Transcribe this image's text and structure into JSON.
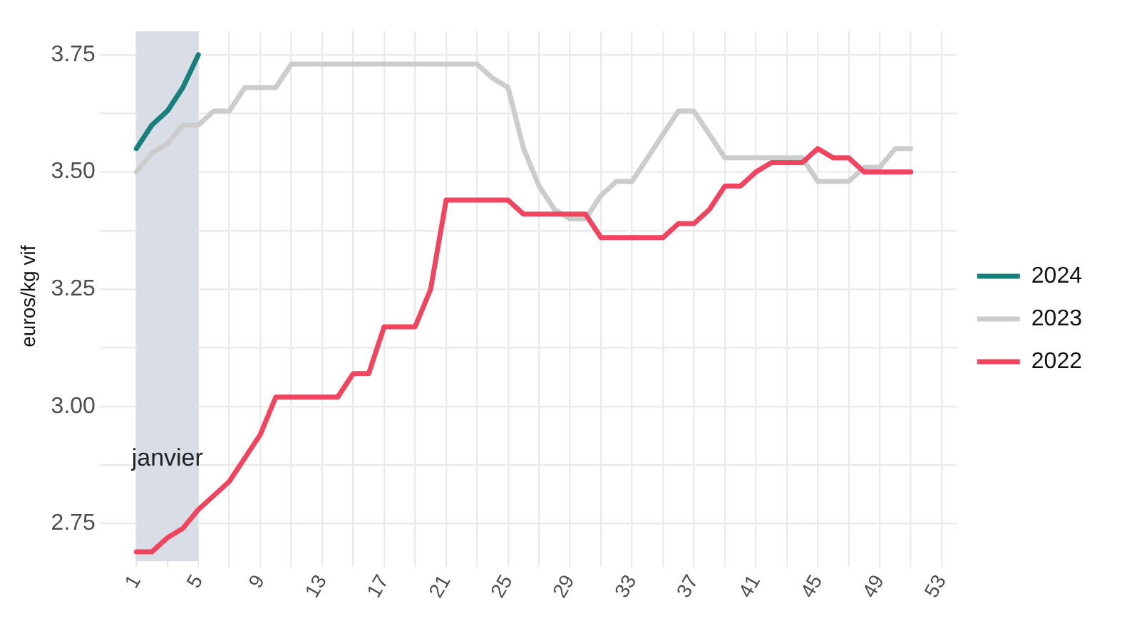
{
  "chart_data": {
    "type": "line",
    "ylabel": "euros/kg vif",
    "xlim": [
      -1,
      54
    ],
    "xticks": [
      1,
      {
        "value": 3,
        "label": null
      },
      5,
      {
        "value": 7,
        "label": null
      },
      9,
      {
        "value": 11,
        "label": null
      },
      13,
      {
        "value": 15,
        "label": null
      },
      17,
      {
        "value": 19,
        "label": null
      },
      21,
      {
        "value": 23,
        "label": null
      },
      25,
      {
        "value": 27,
        "label": null
      },
      29,
      {
        "value": 31,
        "label": null
      },
      33,
      {
        "value": 35,
        "label": null
      },
      37,
      {
        "value": 39,
        "label": null
      },
      41,
      {
        "value": 43,
        "label": null
      },
      45,
      {
        "value": 47,
        "label": null
      },
      49,
      {
        "value": 51,
        "label": null
      },
      53
    ],
    "ylim": [
      2.67,
      3.8
    ],
    "yticks": [
      {
        "value": 2.75,
        "label": "2.75"
      },
      {
        "value": 2.875,
        "label": null
      },
      {
        "value": 3,
        "label": "3.00"
      },
      {
        "value": 3.125,
        "label": null
      },
      {
        "value": 3.25,
        "label": "3.25"
      },
      {
        "value": 3.375,
        "label": null
      },
      {
        "value": 3.5,
        "label": "3.50"
      },
      {
        "value": 3.625,
        "label": null
      },
      {
        "value": 3.75,
        "label": "3.75"
      }
    ],
    "grid": true,
    "legend": "right",
    "marker": "none",
    "line_style": "solid",
    "bands": [
      {
        "axis": "x",
        "from": 1,
        "to": 5,
        "label": "janvier",
        "color": "#d9dde6"
      }
    ],
    "series": [
      {
        "name": "2024",
        "color": "#17807b",
        "x": [
          1,
          2,
          3,
          4,
          5
        ],
        "values": [
          3.55,
          3.6,
          3.63,
          3.68,
          3.75
        ]
      },
      {
        "name": "2023",
        "color": "#cccccc",
        "x": [
          1,
          2,
          3,
          4,
          5,
          6,
          7,
          8,
          9,
          10,
          11,
          12,
          13,
          14,
          15,
          16,
          17,
          18,
          19,
          20,
          21,
          22,
          23,
          24,
          25,
          26,
          27,
          28,
          29,
          30,
          31,
          32,
          33,
          34,
          35,
          36,
          37,
          38,
          39,
          40,
          41,
          42,
          43,
          44,
          45,
          46,
          47,
          48,
          49,
          50,
          51
        ],
        "values": [
          3.5,
          3.54,
          3.56,
          3.6,
          3.6,
          3.63,
          3.63,
          3.68,
          3.68,
          3.68,
          3.73,
          3.73,
          3.73,
          3.73,
          3.73,
          3.73,
          3.73,
          3.73,
          3.73,
          3.73,
          3.73,
          3.73,
          3.73,
          3.7,
          3.68,
          3.55,
          3.47,
          3.42,
          3.4,
          3.4,
          3.45,
          3.48,
          3.48,
          3.53,
          3.58,
          3.63,
          3.63,
          3.58,
          3.53,
          3.53,
          3.53,
          3.53,
          3.53,
          3.53,
          3.48,
          3.48,
          3.48,
          3.51,
          3.51,
          3.55,
          3.55
        ]
      },
      {
        "name": "2022",
        "color": "#f0445f",
        "x": [
          1,
          2,
          3,
          4,
          5,
          6,
          7,
          8,
          9,
          10,
          11,
          12,
          13,
          14,
          15,
          16,
          17,
          18,
          19,
          20,
          21,
          22,
          23,
          24,
          25,
          26,
          27,
          28,
          29,
          30,
          31,
          32,
          33,
          34,
          35,
          36,
          37,
          38,
          39,
          40,
          41,
          42,
          43,
          44,
          45,
          46,
          47,
          48,
          49,
          50,
          51
        ],
        "values": [
          2.69,
          2.69,
          2.72,
          2.74,
          2.78,
          2.81,
          2.84,
          2.89,
          2.94,
          3.02,
          3.02,
          3.02,
          3.02,
          3.02,
          3.07,
          3.07,
          3.17,
          3.17,
          3.17,
          3.25,
          3.44,
          3.44,
          3.44,
          3.44,
          3.44,
          3.41,
          3.41,
          3.41,
          3.41,
          3.41,
          3.36,
          3.36,
          3.36,
          3.36,
          3.36,
          3.39,
          3.39,
          3.42,
          3.47,
          3.47,
          3.5,
          3.52,
          3.52,
          3.52,
          3.55,
          3.53,
          3.53,
          3.5,
          3.5,
          3.5,
          3.5
        ]
      }
    ]
  }
}
